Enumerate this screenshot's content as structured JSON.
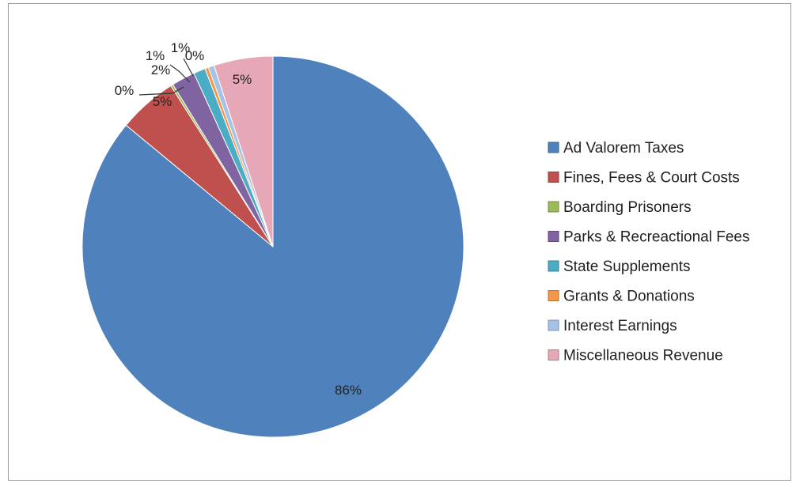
{
  "chart_data": {
    "type": "pie",
    "title": "",
    "legend_position": "right",
    "slices": [
      {
        "name": "Ad Valorem Taxes",
        "value": 86,
        "label": "86%",
        "color": "#4f81bd"
      },
      {
        "name": "Fines, Fees & Court Costs",
        "value": 5,
        "label": "5%",
        "color": "#c0504d"
      },
      {
        "name": "Boarding Prisoners",
        "value": 0.2,
        "label": "0%",
        "color": "#9bbb59"
      },
      {
        "name": "Parks & Recreactional Fees",
        "value": 2,
        "label": "2%",
        "color": "#8064a2"
      },
      {
        "name": "State Supplements",
        "value": 1,
        "label": "1%",
        "color": "#4bacc6"
      },
      {
        "name": "Grants & Donations",
        "value": 0.3,
        "label": "0%",
        "color": "#f79646"
      },
      {
        "name": "Interest Earnings",
        "value": 0.5,
        "label": "1%",
        "color": "#a5c3e6"
      },
      {
        "name": "Miscellaneous Revenue",
        "value": 5,
        "label": "5%",
        "color": "#e6a8b6"
      }
    ]
  }
}
